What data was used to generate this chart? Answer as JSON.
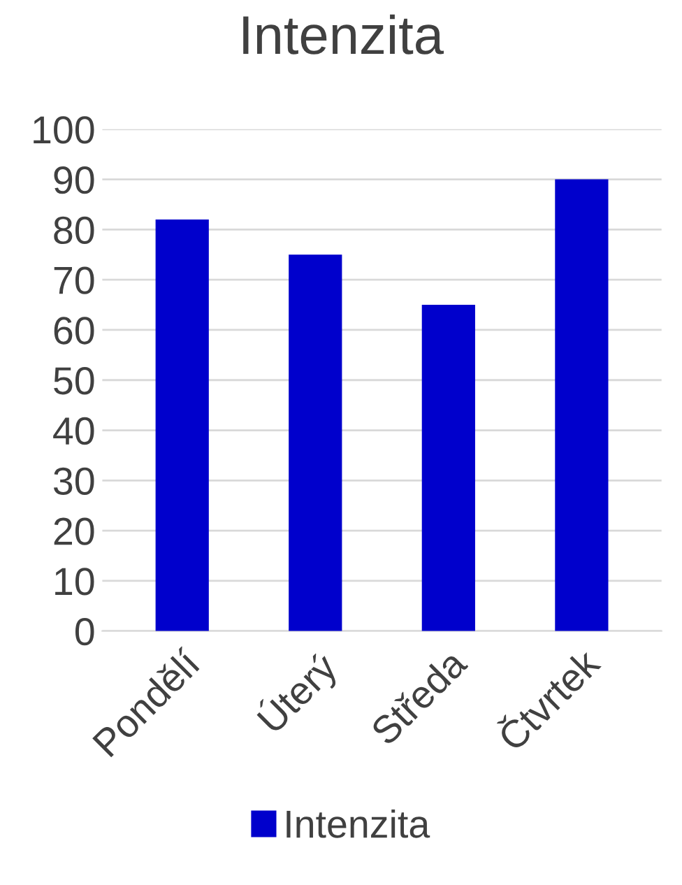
{
  "chart_data": {
    "type": "bar",
    "title": "Intenzita",
    "categories": [
      "Pondělí",
      "Úterý",
      "Středa",
      "Čtvrtek"
    ],
    "series": [
      {
        "name": "Intenzita",
        "color": "#0000cc",
        "values": [
          82,
          75,
          65,
          90
        ]
      }
    ],
    "ylim": [
      0,
      100
    ],
    "yticks": [
      0,
      10,
      20,
      30,
      40,
      50,
      60,
      70,
      80,
      90,
      100
    ],
    "grid": "y",
    "legend": "bottom"
  }
}
